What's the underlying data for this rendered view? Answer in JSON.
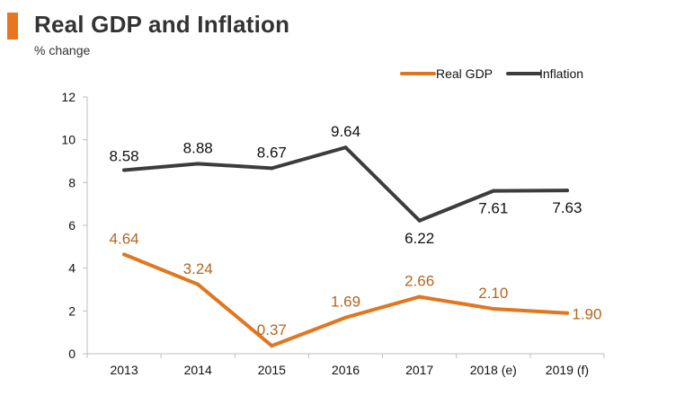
{
  "header": {
    "title": "Real GDP and Inflation",
    "subtitle": "% change"
  },
  "colors": {
    "accent": "#e8761e",
    "gdp": "#e07620",
    "inflation": "#3c3c3c",
    "gdp_label": "#b5651d",
    "inflation_label": "#111111"
  },
  "chart_data": {
    "type": "line",
    "title": "Real GDP and Inflation",
    "subtitle": "% change",
    "xlabel": "",
    "ylabel": "% change",
    "categories": [
      "2013",
      "2014",
      "2015",
      "2016",
      "2017",
      "2018 (e)",
      "2019 (f)"
    ],
    "ylim": [
      0,
      12
    ],
    "yticks": [
      "0",
      "2",
      "4",
      "6",
      "8",
      "10",
      "12"
    ],
    "legend_position": "top-right",
    "grid": false,
    "series": [
      {
        "name": "Real GDP",
        "color": "#e07620",
        "values": [
          4.64,
          3.24,
          0.37,
          1.69,
          2.66,
          2.1,
          1.9
        ],
        "labels": [
          "4.64",
          "3.24",
          "0.37",
          "1.69",
          "2.66",
          "2.10",
          "1.90"
        ]
      },
      {
        "name": "Inflation",
        "color": "#3c3c3c",
        "values": [
          8.58,
          8.88,
          8.67,
          9.64,
          6.22,
          7.61,
          7.63
        ],
        "labels": [
          "8.58",
          "8.88",
          "8.67",
          "9.64",
          "6.22",
          "7.61",
          "7.63"
        ]
      }
    ]
  }
}
